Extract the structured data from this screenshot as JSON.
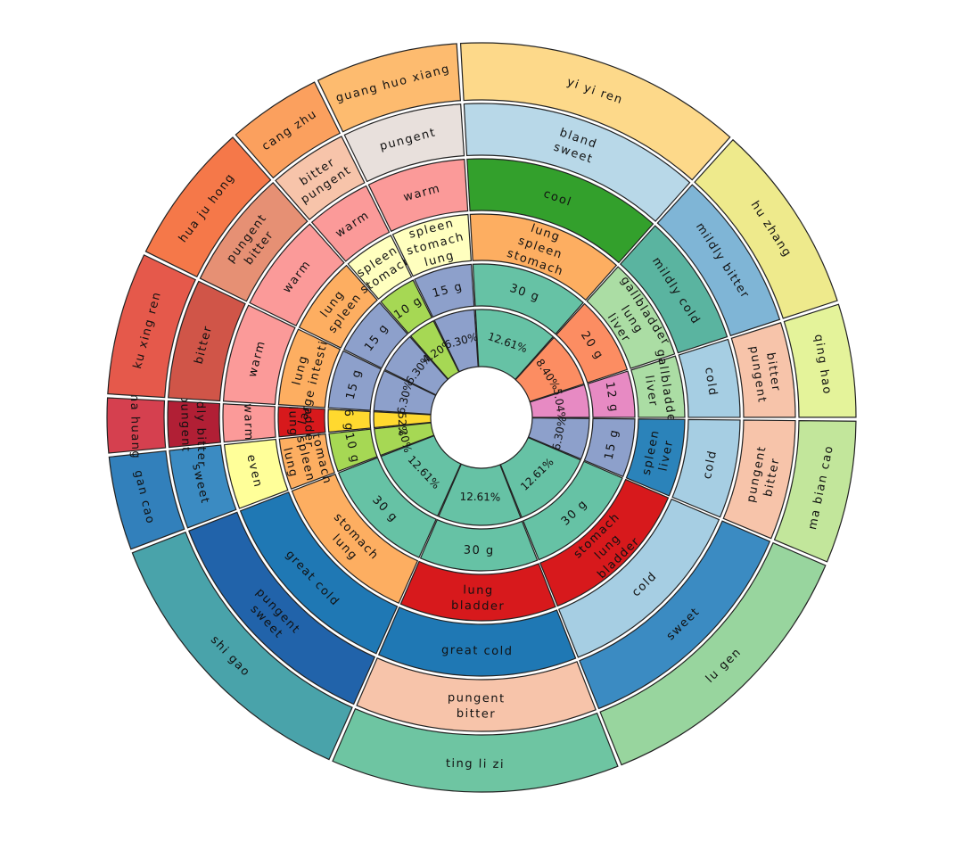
{
  "chart_data": {
    "type": "sunburst",
    "rings_order_inner_to_outer": [
      "percent",
      "dose",
      "meridians",
      "nature",
      "flavor",
      "herb"
    ],
    "herbs": [
      {
        "name": "yi yi ren",
        "flavor": "bland\nsweet",
        "nature": "cool",
        "meridians": "lung\nspleen\nstomach",
        "dose": "30 g",
        "percent": "12.61%",
        "dose_g": 30,
        "color": "#fdd98a"
      },
      {
        "name": "hu zhang",
        "flavor": "mildly bitter",
        "nature": "mildly cold",
        "meridians": "gallbladder\nlung\nliver",
        "dose": "20 g",
        "percent": "8.40%",
        "dose_g": 20,
        "color": "#eeea8c"
      },
      {
        "name": "qing hao",
        "flavor": "bitter\npungent",
        "nature": "cold",
        "meridians": "gallbladder\nliver",
        "dose": "12 g",
        "percent": "5.04%",
        "dose_g": 12,
        "color": "#e4f39a"
      },
      {
        "name": "ma bian cao",
        "flavor": "pungent\nbitter",
        "nature": "cold",
        "meridians": "spleen\nliver",
        "dose": "15 g",
        "percent": "6.30%",
        "dose_g": 15,
        "color": "#c2e69b"
      },
      {
        "name": "lu gen",
        "flavor": "sweet",
        "nature": "cold",
        "meridians": "stomach\nlung\nbladder",
        "dose": "30 g",
        "percent": "12.61%",
        "dose_g": 30,
        "color": "#98d59e"
      },
      {
        "name": "ting li zi",
        "flavor": "pungent\nbitter",
        "nature": "great cold",
        "meridians": "lung\nbladder",
        "dose": "30 g",
        "percent": "12.61%",
        "dose_g": 30,
        "color": "#6ec5a2"
      },
      {
        "name": "shi gao",
        "flavor": "pungent\nsweet",
        "nature": "great cold",
        "meridians": "stomach\nlung",
        "dose": "30 g",
        "percent": "12.61%",
        "dose_g": 30,
        "color": "#49a3aa"
      },
      {
        "name": "gan cao",
        "flavor": "sweet",
        "nature": "even",
        "meridians": "stomach\nspleen\nlung",
        "dose": "10 g",
        "percent": "4.20%",
        "dose_g": 10,
        "color": "#3280bb"
      },
      {
        "name": "ma huang",
        "flavor": "mildly bitter\npungent",
        "nature": "warm",
        "meridians": "bladder\nlung",
        "dose": "6 g",
        "percent": "2.52%",
        "dose_g": 6,
        "color": "#d5404f"
      },
      {
        "name": "ku xing ren",
        "flavor": "bitter",
        "nature": "warm",
        "meridians": "lung\nlarge intestine",
        "dose": "15 g",
        "percent": "6.30%",
        "dose_g": 15,
        "color": "#e5594b"
      },
      {
        "name": "hua ju hong",
        "flavor": "pungent\nbitter",
        "nature": "warm",
        "meridians": "lung\nspleen",
        "dose": "15 g",
        "percent": "6.30%",
        "dose_g": 15,
        "color": "#f57849"
      },
      {
        "name": "cang zhu",
        "flavor": "bitter\npungent",
        "nature": "warm",
        "meridians": "spleen\nstomach",
        "dose": "10 g",
        "percent": "4.20%",
        "dose_g": 10,
        "color": "#fba05e"
      },
      {
        "name": "guang huo xiang",
        "flavor": "pungent",
        "nature": "warm",
        "meridians": "spleen\nstomach\nlung",
        "dose": "15 g",
        "percent": "6.30%",
        "dose_g": 15,
        "color": "#fdbb6f"
      }
    ],
    "ring_colors": {
      "percent": [
        "#66c2a5",
        "#fc8d62",
        "#e78ac3",
        "#8da0cb",
        "#66c2a5",
        "#66c2a5",
        "#66c2a5",
        "#a6d854",
        "#ffd92f",
        "#8da0cb",
        "#8da0cb",
        "#a6d854",
        "#8da0cb"
      ],
      "dose": [
        "#66c2a5",
        "#fc8d62",
        "#e78ac3",
        "#8da0cb",
        "#66c2a5",
        "#66c2a5",
        "#66c2a5",
        "#a6d854",
        "#ffd92f",
        "#8da0cb",
        "#8da0cb",
        "#a6d854",
        "#8da0cb"
      ],
      "meridians": [
        "#fdae61",
        "#abdda4",
        "#abdda4",
        "#2b83ba",
        "#d7191c",
        "#d7191c",
        "#fdae61",
        "#fdae61",
        "#d7191c",
        "#fdae61",
        "#fdae61",
        "#ffffbf",
        "#ffffbf"
      ],
      "nature": [
        "#33a02c",
        "#5ab4a0",
        "#a6cee3",
        "#a6cee3",
        "#a6cee3",
        "#1f78b4",
        "#1f78b4",
        "#ffff99",
        "#fb9a99",
        "#fb9a99",
        "#fb9a99",
        "#fb9a99",
        "#fb9a99"
      ],
      "flavor": [
        "#b8d8e8",
        "#7fb5d6",
        "#f7c4aa",
        "#f7c4aa",
        "#3b8bc2",
        "#f7c4aa",
        "#2163aa",
        "#3b8bc2",
        "#b11f35",
        "#d05548",
        "#e69074",
        "#f7c4aa",
        "#e8e0dc"
      ]
    }
  }
}
